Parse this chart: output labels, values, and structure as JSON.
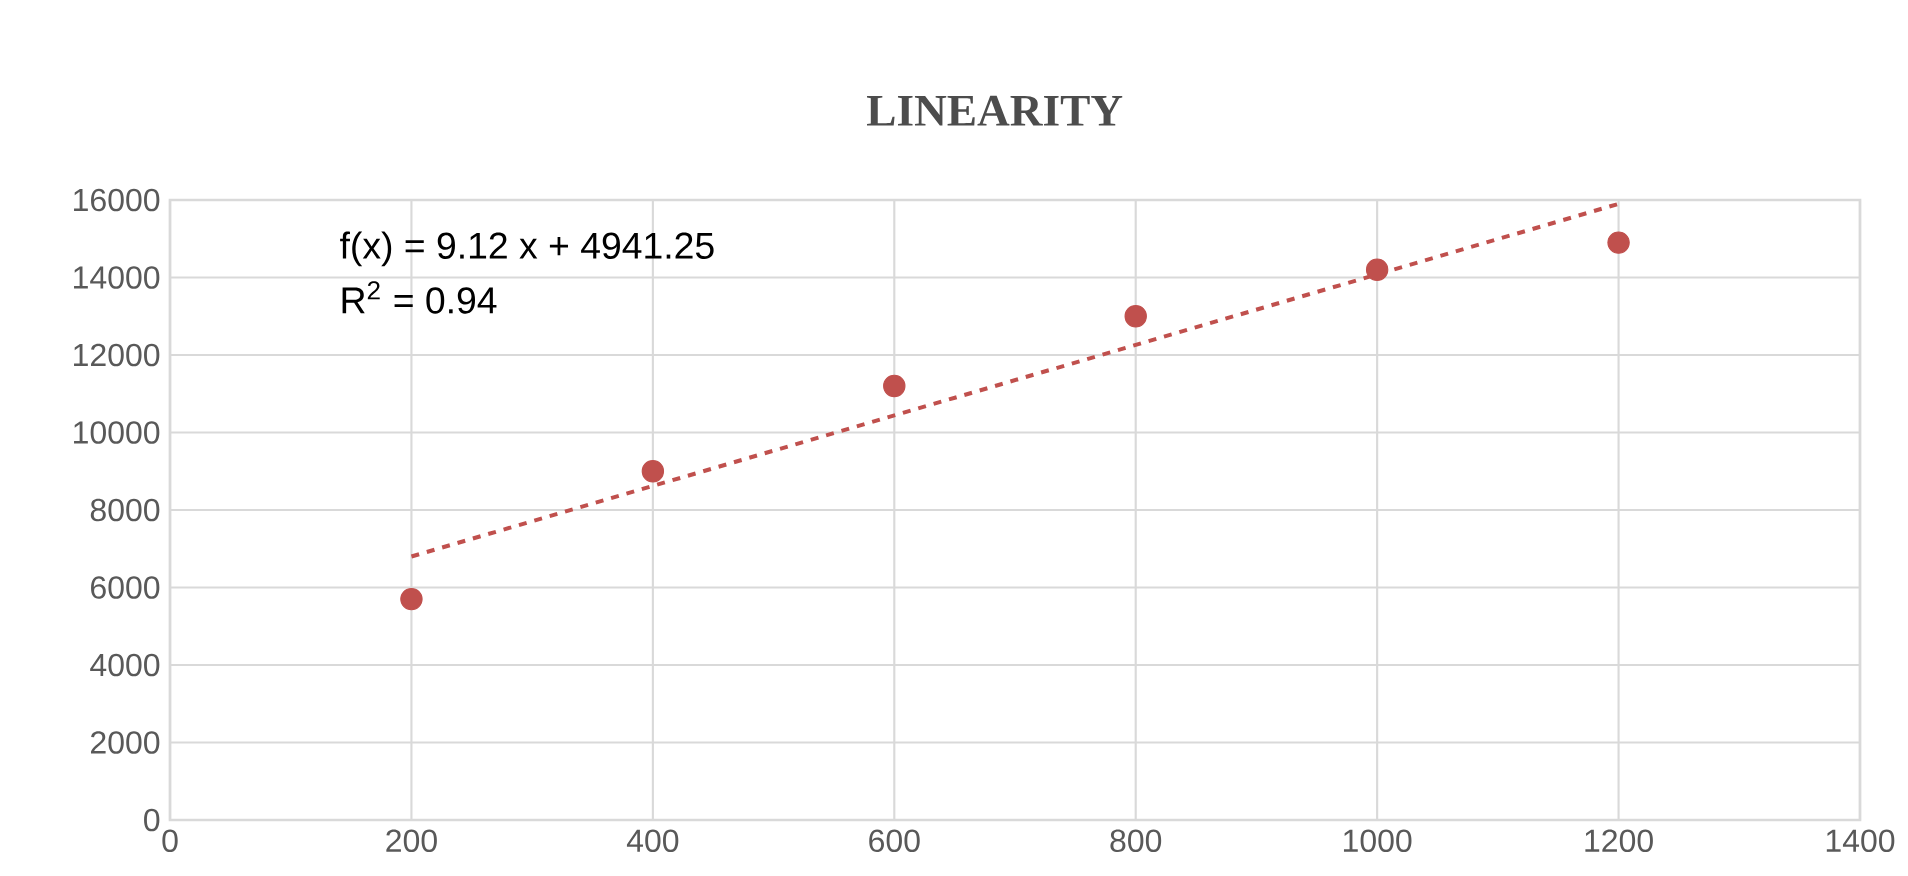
{
  "chart_data": {
    "type": "scatter",
    "title": "LINEARITY",
    "annotations": [
      "f(x) = 9.12 x + 4941.25",
      "R$^{2}$ = 0.94"
    ],
    "series": [
      {
        "color": "#c0504d",
        "x": [
          200,
          400,
          600,
          800,
          1000,
          1200
        ],
        "values": [
          5700,
          9000,
          11200,
          13000,
          14200,
          14900
        ],
        "marker": "circle"
      },
      {
        "type": "line",
        "color": "#c0504d",
        "x": [
          200,
          1200
        ],
        "values": [
          6800,
          15900
        ],
        "marker": "none",
        "line_style": "dashed"
      }
    ],
    "xlim": [
      0,
      1400
    ],
    "xticks": [
      0,
      200,
      400,
      600,
      800,
      1000,
      1200,
      1400
    ],
    "ylim": [
      0,
      16000
    ],
    "yticks": [
      0,
      2000,
      4000,
      6000,
      8000,
      10000,
      12000,
      14000,
      16000
    ],
    "grid": true
  }
}
